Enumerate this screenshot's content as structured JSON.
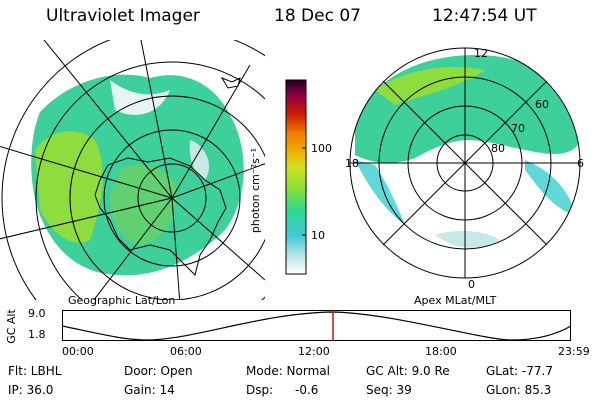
{
  "header": {
    "instrument": "Ultraviolet Imager",
    "date": "18 Dec 07",
    "time": "12:47:54 UT"
  },
  "colorbar": {
    "unit_label": "photon cm⁻²s⁻¹",
    "ticks": [
      "100",
      "10"
    ],
    "colors": [
      "#ffffff",
      "#c8e8e8",
      "#40c8d8",
      "#30d890",
      "#90e030",
      "#d0e020",
      "#f0b000",
      "#f08000",
      "#d02000",
      "#900040",
      "#300030"
    ]
  },
  "left_map": {
    "label": "Geographic Lat/Lon"
  },
  "right_map": {
    "label": "Apex MLat/MLT",
    "mlt_labels": {
      "top": "12",
      "left": "18",
      "right": "6",
      "bottom": "0"
    },
    "mlat_labels": [
      "60",
      "70",
      "80"
    ]
  },
  "altitude_plot": {
    "ylabel": "GC Alt",
    "yticks": [
      "9.0",
      "1.8"
    ],
    "xticks": [
      "00:00",
      "06:00",
      "12:00",
      "18:00",
      "23:59"
    ],
    "marker_color": "#d01010",
    "marker_time": "12:47:54"
  },
  "info": {
    "filter": "Flt: LBHL",
    "ip": "IP: 36.0",
    "door": "Door: Open",
    "gain": "Gain: 14",
    "mode": "Mode: Normal",
    "dsp_label": "Dsp:",
    "dsp_value": "-0.6",
    "gc_alt": "GC Alt: 9.0 Re",
    "seq": "Seq: 39",
    "glat": "GLat: -77.7",
    "glon": "GLon: 85.3"
  }
}
